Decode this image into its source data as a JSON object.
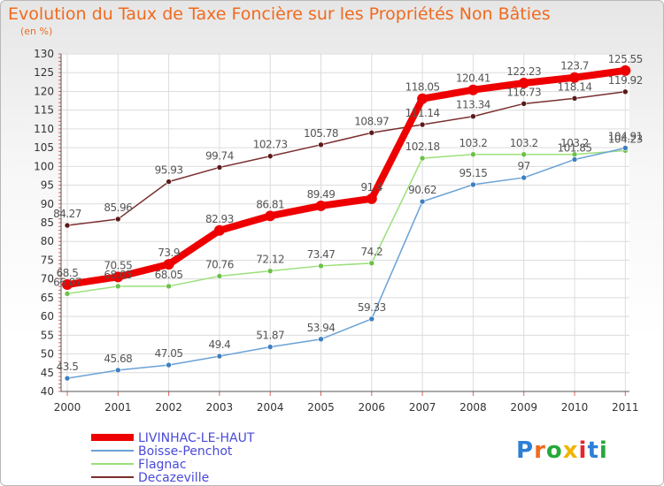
{
  "title": "Evolution du Taux de Taxe Foncière sur les Propriétés Non Bâties",
  "subtitle": "(en %)",
  "logo": {
    "text": "Proxiti",
    "colors": [
      "#2d7fd6",
      "#f06a1e",
      "#27a83a",
      "#f0b400",
      "#e8252b",
      "#2d7fd6",
      "#27a83a"
    ]
  },
  "chart_data": {
    "type": "line",
    "title": "Evolution du Taux de Taxe Foncière sur les Propriétés Non Bâties",
    "ylabel": "(en %)",
    "xlabel": "",
    "ylim": [
      40,
      130
    ],
    "yticks": [
      "40",
      "45",
      "50",
      "55",
      "60",
      "65",
      "70",
      "75",
      "80",
      "85",
      "90",
      "95",
      "100",
      "105",
      "110",
      "115",
      "120",
      "125",
      "130"
    ],
    "x": [
      "2000",
      "2001",
      "2002",
      "2003",
      "2004",
      "2005",
      "2006",
      "2007",
      "2008",
      "2009",
      "2010",
      "2011"
    ],
    "grid": true,
    "legend_position": "bottom-left",
    "series": [
      {
        "name": "Decazeville",
        "color": "#7a2e2e",
        "marker": "#5a1a1a",
        "width": 1.5,
        "values": [
          84.27,
          85.96,
          95.93,
          99.74,
          102.73,
          105.78,
          108.97,
          111.14,
          113.34,
          116.73,
          118.14,
          119.92
        ],
        "labels": [
          "84.27",
          "85.96",
          "95.93",
          "99.74",
          "102.73",
          "105.78",
          "108.97",
          "111.14",
          "113.34",
          "116.73",
          "118.14",
          "119.92"
        ]
      },
      {
        "name": "Flagnac",
        "color": "#9be07a",
        "marker": "#6cc04a",
        "width": 1.5,
        "values": [
          66.07,
          68.05,
          68.05,
          70.76,
          72.12,
          73.47,
          74.2,
          102.18,
          103.2,
          103.2,
          103.2,
          104.23
        ],
        "labels": [
          "66.07",
          "68.05",
          "68.05",
          "70.76",
          "72.12",
          "73.47",
          "74.2",
          "102.18",
          "103.2",
          "103.2",
          "103.2",
          "104.23"
        ]
      },
      {
        "name": "Boisse-Penchot",
        "color": "#6aa2d6",
        "marker": "#3d7fc0",
        "width": 1.5,
        "values": [
          43.5,
          45.68,
          47.05,
          49.4,
          51.87,
          53.94,
          59.33,
          90.62,
          95.15,
          97,
          101.85,
          104.91
        ],
        "labels": [
          "43.5",
          "45.68",
          "47.05",
          "49.4",
          "51.87",
          "53.94",
          "59.33",
          "90.62",
          "95.15",
          "97",
          "101.85",
          "104.91"
        ]
      },
      {
        "name": "LIVINHAC-LE-HAUT",
        "color": "#ee0000",
        "marker": "#ee0000",
        "width": 8,
        "values": [
          68.5,
          70.55,
          73.9,
          82.93,
          86.81,
          89.49,
          91.4,
          118.05,
          120.41,
          122.23,
          123.7,
          125.55
        ],
        "labels": [
          "68.5",
          "70.55",
          "73.9",
          "82.93",
          "86.81",
          "89.49",
          "91.4",
          "118.05",
          "120.41",
          "122.23",
          "123.7",
          "125.55"
        ]
      }
    ],
    "legend": [
      "LIVINHAC-LE-HAUT",
      "Boisse-Penchot",
      "Flagnac",
      "Decazeville"
    ]
  }
}
